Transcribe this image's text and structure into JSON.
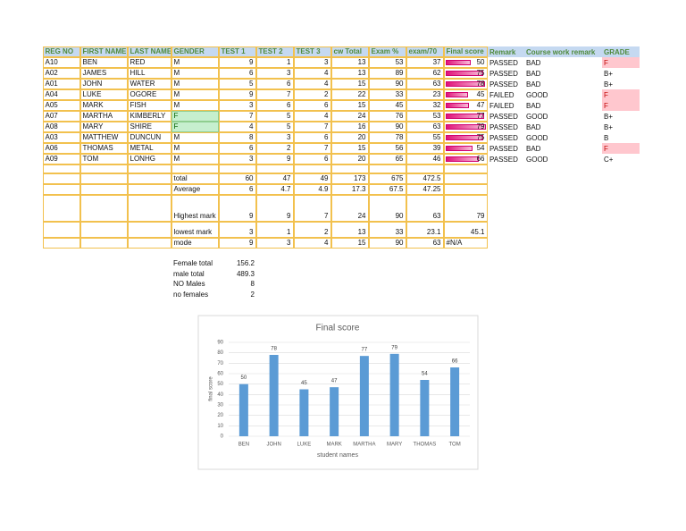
{
  "table": {
    "header": [
      "REG NO",
      "FIRST NAME",
      "LAST NAME",
      "GENDER",
      "TEST 1",
      "TEST 2",
      "TEST 3",
      "cw Total",
      "Exam %",
      "exam/70",
      "Final score",
      "Remark",
      "Course work remark",
      "GRADE"
    ],
    "rows": [
      [
        "A10",
        "BEN",
        "RED",
        "M",
        9,
        1,
        3,
        13,
        53,
        37,
        50,
        "PASSED",
        "BAD",
        "F"
      ],
      [
        "A02",
        "JAMES",
        "HILL",
        "M",
        6,
        3,
        4,
        13,
        89,
        62,
        75,
        "PASSED",
        "BAD",
        "B+"
      ],
      [
        "A01",
        "JOHN",
        "WATER",
        "M",
        5,
        6,
        4,
        15,
        90,
        63,
        78,
        "PASSED",
        "BAD",
        "B+"
      ],
      [
        "A04",
        "LUKE",
        "OGORE",
        "M",
        9,
        7,
        2,
        22,
        33,
        23,
        45,
        "FAILED",
        "GOOD",
        "F"
      ],
      [
        "A05",
        "MARK",
        "FISH",
        "M",
        3,
        6,
        6,
        15,
        45,
        32,
        47,
        "FAILED",
        "BAD",
        "F"
      ],
      [
        "A07",
        "MARTHA",
        "KIMBERLY",
        "F",
        7,
        5,
        4,
        24,
        76,
        53,
        77,
        "PASSED",
        "GOOD",
        "B+"
      ],
      [
        "A08",
        "MARY",
        "SHIRE",
        "F",
        4,
        5,
        7,
        16,
        90,
        63,
        79,
        "PASSED",
        "BAD",
        "B+"
      ],
      [
        "A03",
        "MATTHEW",
        "DUNCUN",
        "M",
        8,
        3,
        6,
        20,
        78,
        55,
        75,
        "PASSED",
        "GOOD",
        "B"
      ],
      [
        "A06",
        "THOMAS",
        "METAL",
        "M",
        6,
        2,
        7,
        15,
        56,
        39,
        54,
        "PASSED",
        "BAD",
        "F"
      ],
      [
        "A09",
        "TOM",
        "LONHG",
        "M",
        3,
        9,
        6,
        20,
        65,
        46,
        66,
        "PASSED",
        "GOOD",
        "C+"
      ]
    ]
  },
  "summary": [
    {
      "label": "total",
      "values": [
        60,
        47,
        49,
        173,
        675,
        472.5
      ]
    },
    {
      "label": "Average",
      "values": [
        6,
        4.7,
        4.9,
        17.3,
        67.5,
        47.25
      ]
    },
    {
      "label": "Highest mark",
      "values": [
        9,
        9,
        7,
        24,
        90,
        63,
        79
      ]
    },
    {
      "label": "lowest mark",
      "values": [
        3,
        1,
        2,
        13,
        33,
        23.1,
        45.1
      ]
    },
    {
      "label": "mode",
      "values": [
        9,
        3,
        4,
        15,
        90,
        63,
        "#N/A"
      ]
    }
  ],
  "stats": [
    {
      "label": "Female total",
      "value": 156.2
    },
    {
      "label": "male total",
      "value": 489.3
    },
    {
      "label": "NO Males",
      "value": 8
    },
    {
      "label": "no females",
      "value": 2
    }
  ],
  "chart_data": {
    "type": "bar",
    "title": "Final score",
    "x_label": "student names",
    "y_label": "final score",
    "categories": [
      "BEN",
      "JOHN",
      "LUKE",
      "MARK",
      "MARTHA",
      "MARY",
      "THOMAS",
      "TOM"
    ],
    "values": [
      50,
      78,
      45,
      47,
      77,
      79,
      54,
      66
    ],
    "color": "#5b9bd5",
    "ylim": [
      0,
      90
    ],
    "yticks": [
      0,
      10,
      20,
      30,
      40,
      50,
      60,
      70,
      80,
      90
    ],
    "grid": true
  }
}
